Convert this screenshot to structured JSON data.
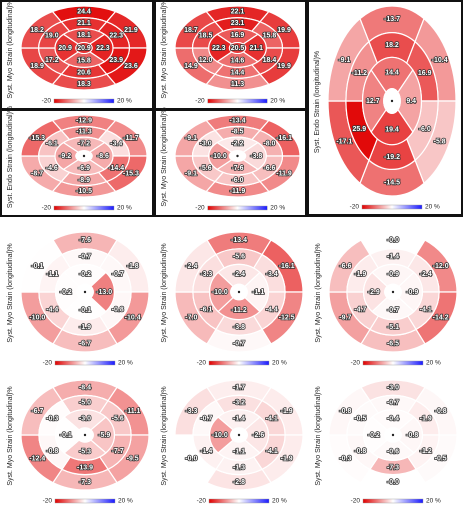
{
  "panels": [
    {
      "axis_label": "Syst. Myo Strain (longitudinal)%",
      "scale_min": "-20",
      "scale_max": "20 %",
      "segments": [
        "24.4",
        "21.9",
        "23.6",
        "18.3",
        "18.9",
        "18.2",
        "21.1",
        "22.3",
        "23.9",
        "20.6",
        "17.2",
        "19.0",
        "18.1",
        "22.3",
        "15.8",
        "20.9",
        "20.9"
      ]
    },
    {
      "axis_label": "Syst. Myo Strain (longitudinal)%",
      "scale_min": "-20",
      "scale_max": "20 %",
      "segments": [
        "22.1",
        "19.9",
        "19.9",
        "11.3",
        "14.9",
        "18.7",
        "23.1",
        "15.8",
        "18.4",
        "14.4",
        "12.0",
        "18.5",
        "16.9",
        "21.1",
        "14.6",
        "22.3",
        "20.5"
      ]
    },
    {
      "axis_label": "Syst. Endo Strain (longitudinal)%",
      "scale_min": "-20",
      "scale_max": "20 %",
      "segments": [
        "-13.7",
        "-10.4",
        "-5.8",
        "-14.5",
        "-17.1",
        "-9.1",
        "18.2",
        "16.9",
        "-6.0",
        "-19.2",
        "25.9",
        "-11.2",
        "14.4",
        "9.4",
        "19.4",
        "12.7",
        null
      ]
    },
    {
      "axis_label": "Syst. Endo Strain (longitudinal)%",
      "scale_min": "-20",
      "scale_max": "20 %",
      "segments": [
        "-12.9",
        "-11.7",
        "-15.3",
        "-10.5",
        "-8.7",
        "-15.3",
        "-11.3",
        "-3.4",
        "-14.4",
        "-8.9",
        "-4.6",
        "-6.1",
        "-7.2",
        "-8.6",
        "-6.9",
        "-9.2",
        null
      ]
    },
    {
      "axis_label": "Syst. Myo Strain (longitudinal)%",
      "scale_min": "-20",
      "scale_max": "20 %",
      "segments": [
        "-13.4",
        "-16.1",
        "-11.9",
        "-11.9",
        "-9.1",
        "-9.1",
        "-8.5",
        "-8.0",
        "-6.6",
        "-6.0",
        "-5.6",
        "-3.0",
        "-2.2",
        "-3.8",
        "-7.6",
        "-10.0",
        null
      ]
    },
    {
      "axis_label": "Syst. Myo Strain (longitudinal)%",
      "scale_min": "-20",
      "scale_max": "20 %",
      "segments": [
        "-7.6",
        "-1.8",
        "-10.4",
        "-6.7",
        "-10.0",
        "-0.1",
        "-0.7",
        "-0.7",
        "-0.8",
        "-1.9",
        "-4.4",
        "-1.1",
        "-0.2",
        "-13.0",
        "-0.1",
        "-0.2",
        null
      ]
    },
    {
      "axis_label": "Syst. Myo Strain (longitudinal)%",
      "scale_min": "-20",
      "scale_max": "20 %",
      "segments": [
        "-13.4",
        "-16.1",
        "-12.5",
        "-0.7",
        "-7.0",
        "-2.4",
        "-5.6",
        "-3.4",
        "-4.4",
        "-3.8",
        "-6.1",
        "-3.3",
        "-2.4",
        "-1.1",
        "-11.2",
        "-10.0",
        null
      ]
    },
    {
      "axis_label": "Syst. Myo Strain (longitudinal)%",
      "scale_min": "-20",
      "scale_max": "20 %",
      "segments": [
        "-0.0",
        "-12.0",
        "-14.2",
        "-6.5",
        "-9.7",
        "-6.6",
        "-1.4",
        "-2.4",
        "-4.1",
        "-5.1",
        "-4.7",
        "-1.9",
        "-0.9",
        "-0.9",
        "-0.7",
        "-2.9",
        null
      ]
    },
    {
      "axis_label": "Syst. Myo Strain (longitudinal)%",
      "scale_min": "-20",
      "scale_max": "20 %",
      "segments": [
        "-8.4",
        "-11.1",
        "-9.5",
        "-7.3",
        "-12.4",
        "-6.7",
        "-5.0",
        "-5.6",
        "-7.7",
        "-13.9",
        "-0.8",
        "-0.3",
        "-3.0",
        "-5.9",
        "-5.3",
        "-0.1",
        null
      ]
    },
    {
      "axis_label": "Syst. Myo Strain (longitudinal)%",
      "scale_min": "-20",
      "scale_max": "20 %",
      "segments": [
        "-1.7",
        "-1.9",
        "-1.9",
        "-2.8",
        "-0.0",
        "-3.3",
        "-3.2",
        "-4.1",
        "-4.1",
        "-1.3",
        "-1.4",
        "-0.7",
        "-1.4",
        "-2.6",
        "-1.1",
        "-10.0",
        null
      ]
    },
    {
      "axis_label": "Syst. Myo Strain (longitudinal)%",
      "scale_min": "-20",
      "scale_max": "20 %",
      "segments": [
        "-3.0",
        "-0.8",
        "-0.5",
        "-0.0",
        "-0.3",
        "-0.8",
        "-0.7",
        "-1.9",
        "-1.2",
        "-7.3",
        "-0.8",
        "-0.5",
        "-0.4",
        "-0.8",
        "-0.6",
        "-0.2",
        null
      ]
    }
  ]
}
